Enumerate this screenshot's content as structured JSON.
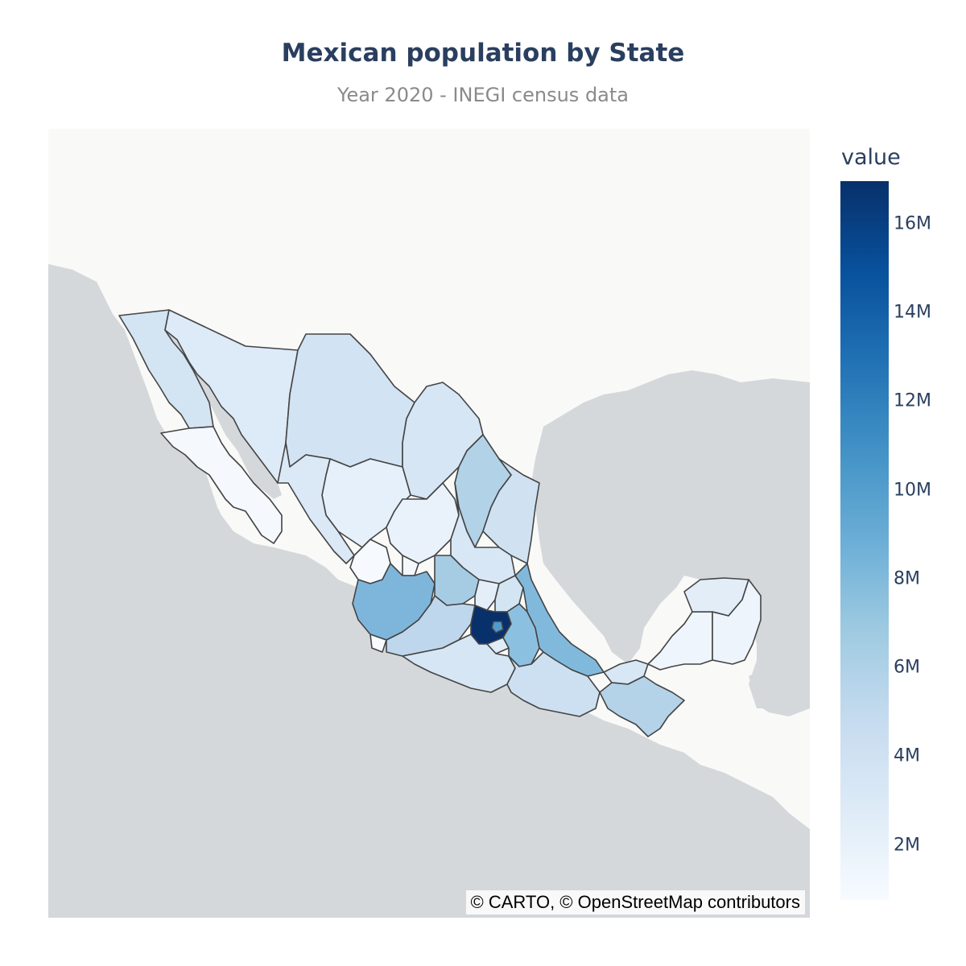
{
  "title": "Mexican population by State",
  "subtitle": "Year 2020 - INEGI census data",
  "attribution": "© CARTO, © OpenStreetMap contributors",
  "colorbar": {
    "title": "value",
    "ticks": [
      "16M",
      "14M",
      "12M",
      "10M",
      "8M",
      "6M",
      "4M",
      "2M"
    ],
    "range": [
      800000,
      17000000
    ],
    "colorscale": "Blues"
  },
  "colors": {
    "ocean": "#d4d8db",
    "land": "#f9f9f8",
    "state_border": "#444444",
    "title": "#2a3f5f"
  }
}
